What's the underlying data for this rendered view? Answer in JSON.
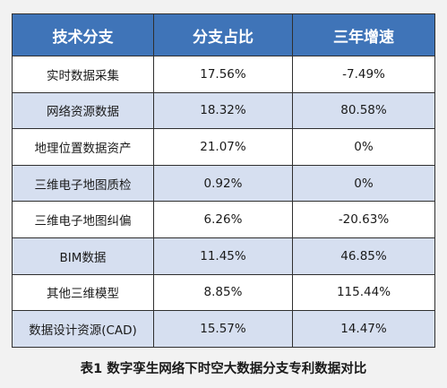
{
  "table": {
    "headers": [
      "技术分支",
      "分支占比",
      "三年增速"
    ],
    "rows": [
      [
        "实时数据采集",
        "17.56%",
        "-7.49%"
      ],
      [
        "网络资源数据",
        "18.32%",
        "80.58%"
      ],
      [
        "地理位置数据资产",
        "21.07%",
        "0%"
      ],
      [
        "三维电子地图质检",
        "0.92%",
        "0%"
      ],
      [
        "三维电子地图纠偏",
        "6.26%",
        "-20.63%"
      ],
      [
        "BIM数据",
        "11.45%",
        "46.85%"
      ],
      [
        "其他三维模型",
        "8.85%",
        "115.44%"
      ],
      [
        "数据设计资源(CAD)",
        "15.57%",
        "14.47%"
      ]
    ]
  },
  "caption": "表1  数字孪生网络下时空大数据分支专利数据对比",
  "colors": {
    "header_bg": "#3f74b8",
    "header_text": "#ffffff",
    "row_alt_bg": "#d6dff0",
    "row_bg": "#ffffff",
    "border": "#2f2f2f",
    "page_bg": "#f2f2f2"
  }
}
